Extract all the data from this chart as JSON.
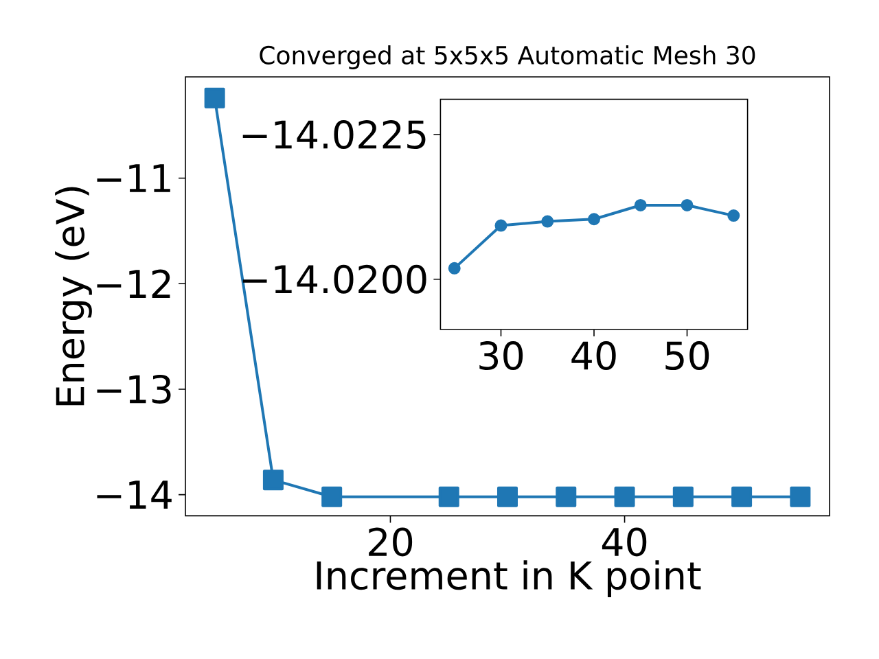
{
  "chart_data": [
    {
      "type": "line",
      "title": "Converged at 5x5x5 Automatic Mesh 30",
      "xlabel": "Increment in K point",
      "ylabel": "Energy (eV)",
      "x": [
        5,
        10,
        15,
        25,
        30,
        35,
        40,
        45,
        50,
        55
      ],
      "values": [
        -10.24,
        -13.86,
        -14.02,
        -14.02,
        -14.02,
        -14.02,
        -14.02,
        -14.02,
        -14.02,
        -14.02
      ],
      "color": "#1f77b4",
      "marker": "square",
      "xlim": [
        2.5,
        57.5
      ],
      "ylim": [
        -14.2,
        -10.04
      ],
      "xticks": [
        20,
        40
      ],
      "yticks": [
        {
          "value": -14,
          "label": "−14"
        },
        {
          "value": -13,
          "label": "−13"
        },
        {
          "value": -12,
          "label": "−12"
        },
        {
          "value": -11,
          "label": "−11"
        }
      ]
    },
    {
      "type": "line",
      "x": [
        25,
        30,
        35,
        40,
        45,
        50,
        55
      ],
      "values": [
        -14.0202,
        -14.02094,
        -14.02101,
        -14.02105,
        -14.02129,
        -14.02129,
        -14.02111
      ],
      "color": "#1f77b4",
      "marker": "circle",
      "xlim": [
        23.5,
        56.5
      ],
      "ylim": [
        -14.01913,
        -14.02312
      ],
      "xticks": [
        30,
        40,
        50
      ],
      "yticks": [
        {
          "value": -14.02,
          "label": "−14.0200"
        },
        {
          "value": -14.0225,
          "label": "−14.0225"
        }
      ]
    }
  ]
}
